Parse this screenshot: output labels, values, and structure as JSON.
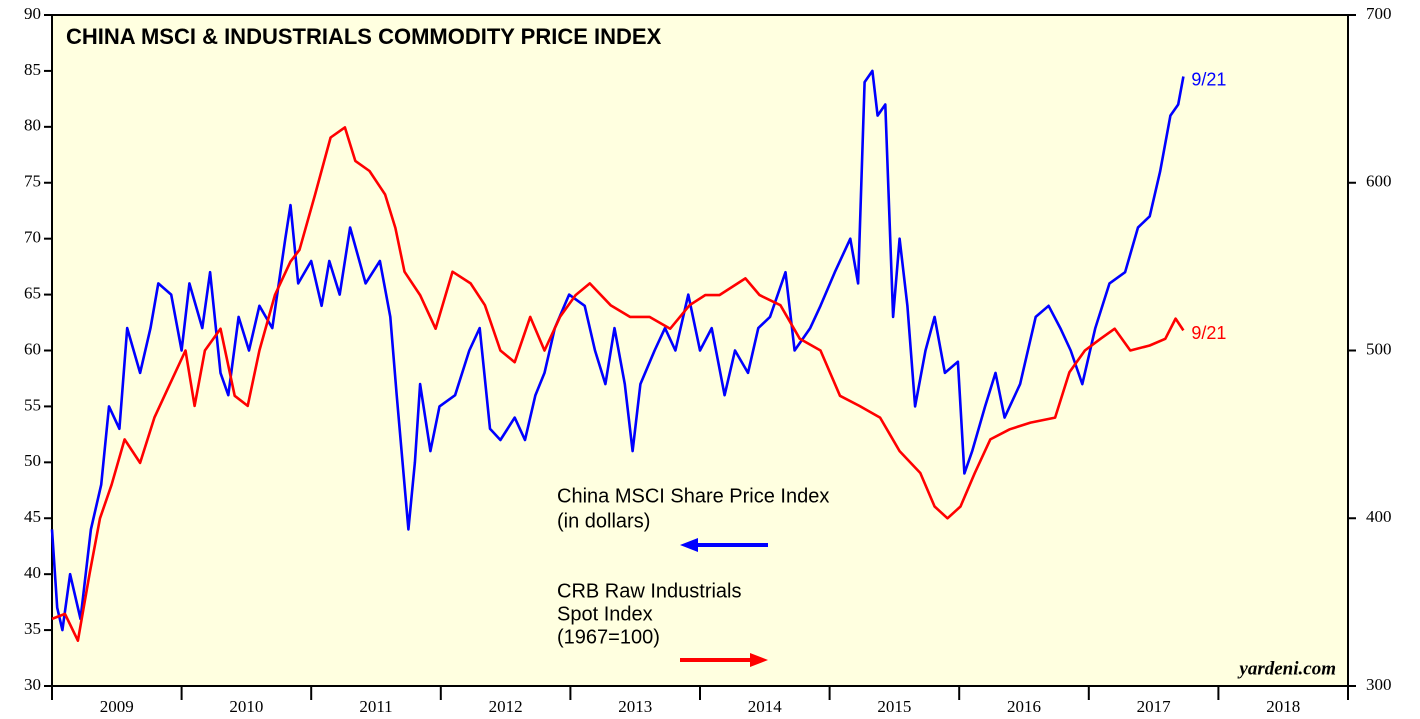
{
  "chart_data": {
    "type": "line",
    "title": "CHINA MSCI & INDUSTRIALS COMMODITY PRICE INDEX",
    "source": "yardeni.com",
    "xlim": [
      2009,
      2019
    ],
    "xticks": [
      {
        "value": 2009.5,
        "label": "2009"
      },
      {
        "value": 2010.5,
        "label": "2010"
      },
      {
        "value": 2011.5,
        "label": "2011"
      },
      {
        "value": 2012.5,
        "label": "2012"
      },
      {
        "value": 2013.5,
        "label": "2013"
      },
      {
        "value": 2014.5,
        "label": "2014"
      },
      {
        "value": 2015.5,
        "label": "2015"
      },
      {
        "value": 2016.5,
        "label": "2016"
      },
      {
        "value": 2017.5,
        "label": "2017"
      },
      {
        "value": 2018.5,
        "label": "2018"
      }
    ],
    "ylim": [
      30,
      90
    ],
    "yticks": [
      30,
      35,
      40,
      45,
      50,
      55,
      60,
      65,
      70,
      75,
      80,
      85,
      90
    ],
    "y2lim": [
      300,
      700
    ],
    "y2ticks": [
      300,
      400,
      500,
      600,
      700
    ],
    "series": [
      {
        "name_lines": [
          "China MSCI Share Price Index",
          "(in dollars)"
        ],
        "color": "#0000ff",
        "axis": "y",
        "end_label": "9/21",
        "x": [
          2009.0,
          2009.04,
          2009.08,
          2009.14,
          2009.22,
          2009.3,
          2009.38,
          2009.44,
          2009.52,
          2009.58,
          2009.68,
          2009.76,
          2009.82,
          2009.92,
          2010.0,
          2010.06,
          2010.16,
          2010.22,
          2010.3,
          2010.36,
          2010.44,
          2010.52,
          2010.6,
          2010.7,
          2010.8,
          2010.84,
          2010.9,
          2011.0,
          2011.08,
          2011.14,
          2011.22,
          2011.3,
          2011.42,
          2011.53,
          2011.61,
          2011.66,
          2011.75,
          2011.8,
          2011.84,
          2011.92,
          2011.99,
          2012.11,
          2012.22,
          2012.3,
          2012.38,
          2012.46,
          2012.57,
          2012.65,
          2012.73,
          2012.8,
          2012.88,
          2012.99,
          2013.11,
          2013.19,
          2013.27,
          2013.34,
          2013.42,
          2013.48,
          2013.54,
          2013.65,
          2013.73,
          2013.81,
          2013.91,
          2014.0,
          2014.09,
          2014.19,
          2014.27,
          2014.37,
          2014.45,
          2014.54,
          2014.66,
          2014.73,
          2014.85,
          2014.93,
          2015.04,
          2015.16,
          2015.22,
          2015.27,
          2015.33,
          2015.37,
          2015.43,
          2015.49,
          2015.54,
          2015.6,
          2015.66,
          2015.74,
          2015.81,
          2015.89,
          2015.99,
          2016.04,
          2016.1,
          2016.2,
          2016.28,
          2016.35,
          2016.47,
          2016.59,
          2016.69,
          2016.78,
          2016.86,
          2016.95,
          2017.05,
          2017.16,
          2017.28,
          2017.38,
          2017.47,
          2017.55,
          2017.63,
          2017.69,
          2017.73
        ],
        "values": [
          44,
          37,
          35,
          40,
          36,
          44,
          48,
          55,
          53,
          62,
          58,
          62,
          66,
          65,
          60,
          66,
          62,
          67,
          58,
          56,
          63,
          60,
          64,
          62,
          70,
          73,
          66,
          68,
          64,
          68,
          65,
          71,
          66,
          68,
          63,
          56,
          44,
          50,
          57,
          51,
          55,
          56,
          60,
          62,
          53,
          52,
          54,
          52,
          56,
          58,
          62,
          65,
          64,
          60,
          57,
          62,
          57,
          51,
          57,
          60,
          62,
          60,
          65,
          60,
          62,
          56,
          60,
          58,
          62,
          63,
          67,
          60,
          62,
          64,
          67,
          70,
          66,
          84,
          85,
          81,
          82,
          63,
          70,
          64,
          55,
          60,
          63,
          58,
          59,
          49,
          51,
          55,
          58,
          54,
          57,
          63,
          64,
          62,
          60,
          57,
          62,
          66,
          67,
          71,
          72,
          76,
          81,
          82,
          84.5
        ]
      },
      {
        "name_lines": [
          "CRB Raw Industrials",
          "Spot Index",
          "(1967=100)"
        ],
        "color": "#ff0000",
        "axis": "y2",
        "end_label": "9/21",
        "x": [
          2009.0,
          2009.1,
          2009.2,
          2009.29,
          2009.37,
          2009.46,
          2009.56,
          2009.68,
          2009.79,
          2009.91,
          2010.03,
          2010.1,
          2010.18,
          2010.3,
          2010.41,
          2010.51,
          2010.6,
          2010.72,
          2010.84,
          2010.91,
          2011.03,
          2011.15,
          2011.26,
          2011.34,
          2011.45,
          2011.57,
          2011.65,
          2011.72,
          2011.84,
          2011.96,
          2012.09,
          2012.23,
          2012.34,
          2012.46,
          2012.57,
          2012.69,
          2012.8,
          2012.92,
          2013.04,
          2013.15,
          2013.31,
          2013.46,
          2013.61,
          2013.77,
          2013.92,
          2014.04,
          2014.15,
          2014.35,
          2014.46,
          2014.62,
          2014.77,
          2014.93,
          2015.08,
          2015.23,
          2015.39,
          2015.54,
          2015.7,
          2015.81,
          2015.91,
          2016.01,
          2016.12,
          2016.24,
          2016.39,
          2016.55,
          2016.74,
          2016.85,
          2016.97,
          2017.09,
          2017.2,
          2017.32,
          2017.47,
          2017.59,
          2017.67,
          2017.73
        ],
        "values": [
          340,
          343,
          327,
          367,
          400,
          420,
          447,
          433,
          460,
          480,
          500,
          467,
          500,
          513,
          473,
          467,
          500,
          533,
          553,
          560,
          593,
          627,
          633,
          613,
          607,
          593,
          573,
          547,
          533,
          513,
          547,
          540,
          527,
          500,
          493,
          520,
          500,
          520,
          533,
          540,
          527,
          520,
          520,
          513,
          527,
          533,
          533,
          543,
          533,
          527,
          507,
          500,
          473,
          467,
          460,
          440,
          427,
          407,
          400,
          407,
          427,
          447,
          453,
          457,
          460,
          487,
          500,
          507,
          513,
          500,
          503,
          507,
          519,
          512
        ]
      }
    ]
  }
}
